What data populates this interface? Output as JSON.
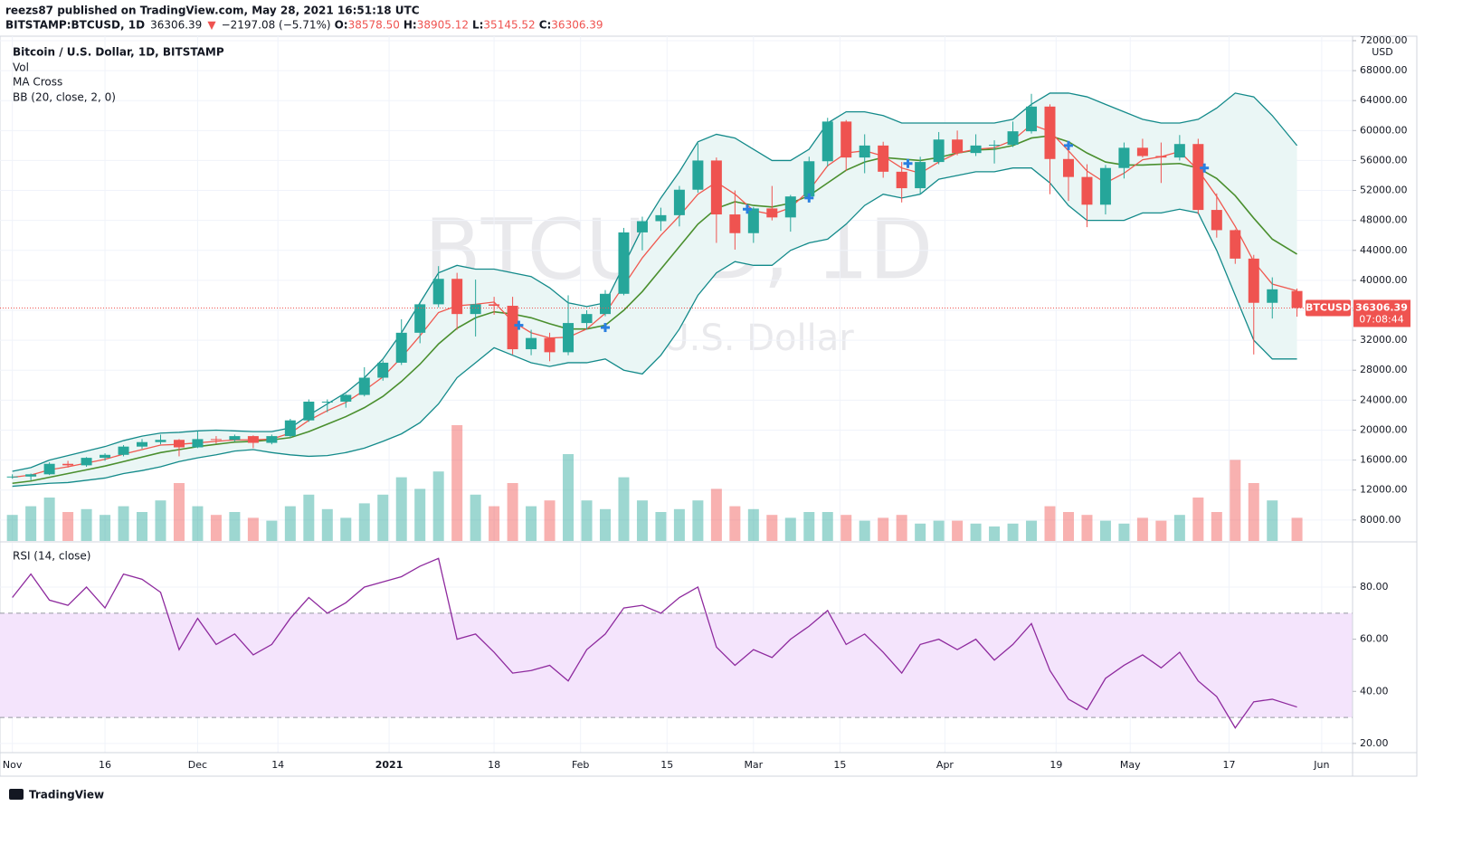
{
  "header": {
    "publisher": "reezs87 published on TradingView.com, May 28, 2021 16:51:18 UTC",
    "symbol": "BITSTAMP:BTCUSD, 1D",
    "last": "36306.39",
    "arrow": "▼",
    "change": "−2197.08 (−5.71%)",
    "ohlc": [
      {
        "key": "O:",
        "value": "38578.50"
      },
      {
        "key": "H:",
        "value": "38905.12"
      },
      {
        "key": "L:",
        "value": "35145.52"
      },
      {
        "key": "C:",
        "value": "36306.39"
      }
    ]
  },
  "legend": [
    "Bitcoin / U.S. Dollar, 1D, BITSTAMP",
    "Vol",
    "MA Cross",
    "BB (20, close, 2, 0)"
  ],
  "watermark": {
    "symbol": "BTCUSD, 1D",
    "name": "Bitcoin / U.S. Dollar"
  },
  "price_tag": {
    "symbol": "BTCUSD",
    "price": "36306.39",
    "countdown": "07:08:44"
  },
  "axis_unit": "USD",
  "footer": "TradingView",
  "chart_data": {
    "type": "candlestick",
    "up_color": "#26a69a",
    "down_color": "#ef5350",
    "x": [
      "2020-11-01",
      "2020-11-04",
      "2020-11-07",
      "2020-11-10",
      "2020-11-13",
      "2020-11-16",
      "2020-11-19",
      "2020-11-22",
      "2020-11-25",
      "2020-11-28",
      "2020-12-01",
      "2020-12-04",
      "2020-12-07",
      "2020-12-10",
      "2020-12-13",
      "2020-12-16",
      "2020-12-19",
      "2020-12-22",
      "2020-12-25",
      "2020-12-28",
      "2020-12-31",
      "2021-01-03",
      "2021-01-06",
      "2021-01-09",
      "2021-01-12",
      "2021-01-15",
      "2021-01-18",
      "2021-01-21",
      "2021-01-24",
      "2021-01-27",
      "2021-01-30",
      "2021-02-02",
      "2021-02-05",
      "2021-02-08",
      "2021-02-11",
      "2021-02-14",
      "2021-02-17",
      "2021-02-20",
      "2021-02-23",
      "2021-02-26",
      "2021-03-01",
      "2021-03-04",
      "2021-03-07",
      "2021-03-10",
      "2021-03-13",
      "2021-03-16",
      "2021-03-19",
      "2021-03-22",
      "2021-03-25",
      "2021-03-28",
      "2021-03-31",
      "2021-04-03",
      "2021-04-06",
      "2021-04-09",
      "2021-04-12",
      "2021-04-15",
      "2021-04-18",
      "2021-04-21",
      "2021-04-24",
      "2021-04-27",
      "2021-04-30",
      "2021-05-03",
      "2021-05-06",
      "2021-05-09",
      "2021-05-12",
      "2021-05-15",
      "2021-05-18",
      "2021-05-21",
      "2021-05-24",
      "2021-05-28"
    ],
    "candles": [
      [
        13700,
        14100,
        13500,
        13800
      ],
      [
        13800,
        14200,
        13300,
        14100
      ],
      [
        14100,
        15700,
        14000,
        15500
      ],
      [
        15500,
        15900,
        15000,
        15300
      ],
      [
        15300,
        16400,
        15100,
        16300
      ],
      [
        16300,
        16900,
        15900,
        16700
      ],
      [
        16700,
        18000,
        16500,
        17800
      ],
      [
        17800,
        18800,
        17500,
        18400
      ],
      [
        18400,
        19400,
        18100,
        18700
      ],
      [
        18700,
        18800,
        16500,
        17700
      ],
      [
        17700,
        19900,
        17600,
        18800
      ],
      [
        18800,
        19200,
        18200,
        18700
      ],
      [
        18700,
        19400,
        18500,
        19200
      ],
      [
        19200,
        19300,
        17600,
        18300
      ],
      [
        18300,
        19400,
        18100,
        19200
      ],
      [
        19200,
        21500,
        19000,
        21300
      ],
      [
        21300,
        24100,
        21100,
        23800
      ],
      [
        23800,
        24100,
        22400,
        23800
      ],
      [
        23800,
        24800,
        23000,
        24700
      ],
      [
        24700,
        28400,
        24500,
        27000
      ],
      [
        27000,
        29300,
        26600,
        29000
      ],
      [
        29000,
        34800,
        28700,
        33000
      ],
      [
        33000,
        37000,
        31600,
        36800
      ],
      [
        36800,
        41900,
        36400,
        40200
      ],
      [
        40200,
        41000,
        33400,
        35500
      ],
      [
        35500,
        40100,
        32500,
        36800
      ],
      [
        36800,
        37800,
        35400,
        36600
      ],
      [
        36600,
        37800,
        30100,
        30800
      ],
      [
        30800,
        33400,
        30000,
        32300
      ],
      [
        32300,
        33000,
        29200,
        30400
      ],
      [
        30400,
        38000,
        30000,
        34300
      ],
      [
        34300,
        36000,
        33400,
        35500
      ],
      [
        35500,
        38700,
        35200,
        38200
      ],
      [
        38200,
        47000,
        38000,
        46400
      ],
      [
        46400,
        48500,
        44000,
        47900
      ],
      [
        47900,
        49700,
        46600,
        48700
      ],
      [
        48700,
        52600,
        47200,
        52100
      ],
      [
        52100,
        58300,
        51700,
        56000
      ],
      [
        56000,
        56400,
        45000,
        48800
      ],
      [
        48800,
        52000,
        44100,
        46300
      ],
      [
        46300,
        49800,
        45000,
        49600
      ],
      [
        49600,
        52600,
        48000,
        48400
      ],
      [
        48400,
        51400,
        46500,
        51200
      ],
      [
        51200,
        56500,
        50400,
        55900
      ],
      [
        55900,
        61700,
        55200,
        61200
      ],
      [
        61200,
        61400,
        54600,
        56400
      ],
      [
        56400,
        59500,
        54300,
        58000
      ],
      [
        58000,
        58500,
        53700,
        54500
      ],
      [
        54500,
        55800,
        50400,
        52300
      ],
      [
        52300,
        56500,
        51500,
        55800
      ],
      [
        55800,
        59800,
        55500,
        58800
      ],
      [
        58800,
        60000,
        56700,
        57000
      ],
      [
        57000,
        59500,
        56600,
        58000
      ],
      [
        58000,
        58700,
        55600,
        58100
      ],
      [
        58100,
        61200,
        57800,
        59900
      ],
      [
        59900,
        64900,
        59600,
        63200
      ],
      [
        63200,
        63500,
        51500,
        56200
      ],
      [
        56200,
        57500,
        50600,
        53800
      ],
      [
        53800,
        55500,
        47100,
        50100
      ],
      [
        50100,
        55400,
        48800,
        55000
      ],
      [
        55000,
        58400,
        53600,
        57700
      ],
      [
        57700,
        58900,
        56400,
        56600
      ],
      [
        56600,
        58400,
        53000,
        56400
      ],
      [
        56400,
        59400,
        56000,
        58200
      ],
      [
        58200,
        58900,
        48800,
        49400
      ],
      [
        49400,
        51600,
        45700,
        46700
      ],
      [
        46700,
        46800,
        42200,
        42900
      ],
      [
        42900,
        43400,
        30100,
        37000
      ],
      [
        37000,
        40400,
        34900,
        38800
      ],
      [
        38578.5,
        38905.12,
        35145.52,
        36306.39
      ]
    ],
    "volume": [
      9000,
      12000,
      15000,
      10000,
      11000,
      9000,
      12000,
      10000,
      14000,
      20000,
      12000,
      9000,
      10000,
      8000,
      7000,
      12000,
      16000,
      11000,
      8000,
      13000,
      16000,
      22000,
      18000,
      24000,
      40000,
      16000,
      12000,
      20000,
      12000,
      14000,
      30000,
      14000,
      11000,
      22000,
      14000,
      10000,
      11000,
      14000,
      18000,
      12000,
      11000,
      9000,
      8000,
      10000,
      10000,
      9000,
      7000,
      8000,
      9000,
      6000,
      7000,
      7000,
      6000,
      5000,
      6000,
      7000,
      12000,
      10000,
      9000,
      7000,
      6000,
      8000,
      7000,
      9000,
      15000,
      10000,
      28000,
      20000,
      14000,
      8000
    ],
    "volume_lim": [
      0,
      50000
    ],
    "bb_color": "#138a8a",
    "bb_fill": "#eaf6f5",
    "bb_upper": [
      14500,
      15000,
      16000,
      16600,
      17200,
      17800,
      18600,
      19200,
      19600,
      19700,
      19900,
      20000,
      19900,
      19800,
      19800,
      20300,
      22000,
      23500,
      25000,
      27000,
      29500,
      33000,
      37000,
      41000,
      42000,
      41500,
      41500,
      41000,
      40500,
      39000,
      37000,
      36500,
      37000,
      42000,
      47000,
      51000,
      54500,
      58500,
      59500,
      59000,
      57500,
      56000,
      56000,
      57500,
      61000,
      62500,
      62500,
      62000,
      61000,
      61000,
      61000,
      61000,
      61000,
      61000,
      61500,
      63500,
      65000,
      65000,
      64500,
      63500,
      62500,
      61500,
      61000,
      61000,
      61500,
      63000,
      65000,
      64500,
      62000,
      58000
    ],
    "bb_lower": [
      12500,
      12700,
      12900,
      13000,
      13300,
      13600,
      14200,
      14600,
      15100,
      15800,
      16300,
      16700,
      17200,
      17400,
      17000,
      16700,
      16500,
      16600,
      17000,
      17600,
      18500,
      19500,
      21000,
      23500,
      27000,
      29000,
      31000,
      30000,
      29000,
      28500,
      29000,
      29000,
      29500,
      28000,
      27500,
      30000,
      33500,
      38000,
      41000,
      42500,
      42000,
      42000,
      44000,
      45000,
      45500,
      47500,
      50000,
      51500,
      51000,
      51500,
      53500,
      54000,
      54500,
      54500,
      55000,
      55000,
      53000,
      50000,
      48000,
      48000,
      48000,
      49000,
      49000,
      49500,
      49000,
      44000,
      38000,
      32000,
      29500,
      29500
    ],
    "ma_fast_color": "#f0584f",
    "ma_slow_color": "#4a8f2e",
    "ma_fast": [
      13700,
      14000,
      14700,
      15100,
      15600,
      16100,
      16800,
      17400,
      18000,
      18100,
      18300,
      18500,
      18700,
      18700,
      18800,
      19600,
      21300,
      22600,
      23700,
      25300,
      27100,
      29700,
      32600,
      35700,
      36600,
      36800,
      37100,
      34500,
      33000,
      32300,
      32400,
      33500,
      35600,
      39300,
      43000,
      46000,
      48600,
      51500,
      53100,
      51500,
      49300,
      48800,
      49700,
      52000,
      55300,
      57000,
      57300,
      56600,
      55000,
      54300,
      55800,
      57000,
      57500,
      57700,
      58700,
      60800,
      59900,
      57300,
      54600,
      53000,
      54300,
      56100,
      56500,
      57200,
      54700,
      51200,
      47200,
      42500,
      39500,
      38600
    ],
    "ma_slow": [
      12900,
      13200,
      13700,
      14200,
      14700,
      15200,
      15800,
      16400,
      17000,
      17400,
      17800,
      18100,
      18400,
      18500,
      18700,
      19000,
      19800,
      20800,
      21800,
      23000,
      24500,
      26500,
      28800,
      31500,
      33600,
      35000,
      35800,
      35500,
      35000,
      34200,
      33500,
      33500,
      34000,
      36000,
      38500,
      41500,
      44500,
      47500,
      49600,
      50500,
      50000,
      49800,
      50300,
      51300,
      53000,
      54700,
      55800,
      56400,
      56200,
      56000,
      56400,
      57000,
      57400,
      57500,
      58000,
      59000,
      59300,
      58500,
      57000,
      55800,
      55400,
      55400,
      55500,
      55600,
      55000,
      53600,
      51300,
      48300,
      45500,
      43500
    ],
    "cross_color": "#2a7fe0",
    "cross_signals": {
      "x": [
        "2021-01-22",
        "2021-02-05",
        "2021-02-28",
        "2021-03-10",
        "2021-03-26",
        "2021-04-21",
        "2021-05-13"
      ],
      "values": [
        34000,
        33700,
        49500,
        51000,
        55600,
        58000,
        55000
      ]
    },
    "last_price_color": "#ef5350",
    "ylim": [
      5200,
      72600
    ],
    "yticks": [
      {
        "value": 8000,
        "label": "8000.00"
      },
      {
        "value": 12000,
        "label": "12000.00"
      },
      {
        "value": 16000,
        "label": "16000.00"
      },
      {
        "value": 20000,
        "label": "20000.00"
      },
      {
        "value": 24000,
        "label": "24000.00"
      },
      {
        "value": 28000,
        "label": "28000.00"
      },
      {
        "value": 32000,
        "label": "32000.00"
      },
      {
        "value": 36000,
        "label": "36000.00"
      },
      {
        "value": 40000,
        "label": "40000.00"
      },
      {
        "value": 44000,
        "label": "44000.00"
      },
      {
        "value": 48000,
        "label": "48000.00"
      },
      {
        "value": 52000,
        "label": "52000.00"
      },
      {
        "value": 56000,
        "label": "56000.00"
      },
      {
        "value": 60000,
        "label": "60000.00"
      },
      {
        "value": 64000,
        "label": "64000.00"
      },
      {
        "value": 68000,
        "label": "68000.00"
      },
      {
        "value": 72000,
        "label": "72000.00"
      }
    ],
    "xlim": [
      "2020-10-30",
      "2021-06-06"
    ],
    "xticks": [
      {
        "value": "2020-11-01",
        "label": "Nov"
      },
      {
        "value": "2020-11-16",
        "label": "16"
      },
      {
        "value": "2020-12-01",
        "label": "Dec"
      },
      {
        "value": "2020-12-14",
        "label": "14"
      },
      {
        "value": "2021-01-01",
        "label": "2021"
      },
      {
        "value": "2021-01-18",
        "label": "18"
      },
      {
        "value": "2021-02-01",
        "label": "Feb"
      },
      {
        "value": "2021-02-15",
        "label": "15"
      },
      {
        "value": "2021-03-01",
        "label": "Mar"
      },
      {
        "value": "2021-03-15",
        "label": "15"
      },
      {
        "value": "2021-04-01",
        "label": "Apr"
      },
      {
        "value": "2021-04-19",
        "label": "19"
      },
      {
        "value": "2021-05-01",
        "label": "May"
      },
      {
        "value": "2021-05-17",
        "label": "17"
      },
      {
        "value": "2021-06-01",
        "label": "Jun"
      }
    ],
    "grid": true,
    "rsi": {
      "title": "RSI (14, close)",
      "color": "#8e2a9e",
      "band_fill": "#f4e4fc",
      "values": [
        76,
        85,
        75,
        73,
        80,
        72,
        85,
        83,
        78,
        56,
        68,
        58,
        62,
        54,
        58,
        68,
        76,
        70,
        74,
        80,
        82,
        84,
        88,
        91,
        60,
        62,
        55,
        47,
        48,
        50,
        44,
        56,
        62,
        72,
        73,
        70,
        76,
        80,
        57,
        50,
        56,
        53,
        60,
        65,
        71,
        58,
        62,
        55,
        47,
        58,
        60,
        56,
        60,
        52,
        58,
        66,
        48,
        37,
        33,
        45,
        50,
        54,
        49,
        55,
        44,
        38,
        26,
        36,
        37,
        34
      ],
      "bands": [
        30,
        70
      ],
      "ylim": [
        16.5,
        97
      ],
      "yticks": [
        {
          "value": 20,
          "label": "20.00"
        },
        {
          "value": 40,
          "label": "40.00"
        },
        {
          "value": 60,
          "label": "60.00"
        },
        {
          "value": 80,
          "label": "80.00"
        }
      ]
    }
  }
}
